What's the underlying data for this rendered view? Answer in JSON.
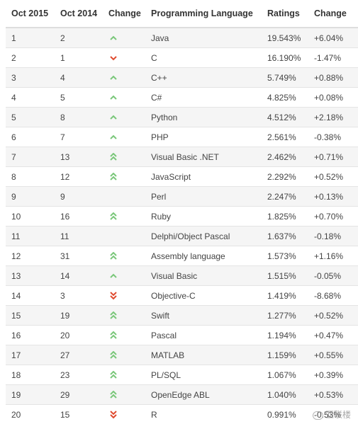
{
  "headers": [
    "Oct 2015",
    "Oct 2014",
    "Change",
    "Programming Language",
    "Ratings",
    "Change"
  ],
  "colors": {
    "up": "#7ac77a",
    "down": "#e04b2f"
  },
  "watermark": "亚联楼",
  "rows": [
    {
      "oct2015": "1",
      "oct2014": "2",
      "change": "up",
      "language": "Java",
      "rating": "19.543%",
      "delta": "+6.04%"
    },
    {
      "oct2015": "2",
      "oct2014": "1",
      "change": "down",
      "language": "C",
      "rating": "16.190%",
      "delta": "-1.47%"
    },
    {
      "oct2015": "3",
      "oct2014": "4",
      "change": "up",
      "language": "C++",
      "rating": "5.749%",
      "delta": "+0.88%"
    },
    {
      "oct2015": "4",
      "oct2014": "5",
      "change": "up",
      "language": "C#",
      "rating": "4.825%",
      "delta": "+0.08%"
    },
    {
      "oct2015": "5",
      "oct2014": "8",
      "change": "up",
      "language": "Python",
      "rating": "4.512%",
      "delta": "+2.18%"
    },
    {
      "oct2015": "6",
      "oct2014": "7",
      "change": "up",
      "language": "PHP",
      "rating": "2.561%",
      "delta": "-0.38%"
    },
    {
      "oct2015": "7",
      "oct2014": "13",
      "change": "double-up",
      "language": "Visual Basic .NET",
      "rating": "2.462%",
      "delta": "+0.71%"
    },
    {
      "oct2015": "8",
      "oct2014": "12",
      "change": "double-up",
      "language": "JavaScript",
      "rating": "2.292%",
      "delta": "+0.52%"
    },
    {
      "oct2015": "9",
      "oct2014": "9",
      "change": "none",
      "language": "Perl",
      "rating": "2.247%",
      "delta": "+0.13%"
    },
    {
      "oct2015": "10",
      "oct2014": "16",
      "change": "double-up",
      "language": "Ruby",
      "rating": "1.825%",
      "delta": "+0.70%"
    },
    {
      "oct2015": "11",
      "oct2014": "11",
      "change": "none",
      "language": "Delphi/Object Pascal",
      "rating": "1.637%",
      "delta": "-0.18%"
    },
    {
      "oct2015": "12",
      "oct2014": "31",
      "change": "double-up",
      "language": "Assembly language",
      "rating": "1.573%",
      "delta": "+1.16%"
    },
    {
      "oct2015": "13",
      "oct2014": "14",
      "change": "up",
      "language": "Visual Basic",
      "rating": "1.515%",
      "delta": "-0.05%"
    },
    {
      "oct2015": "14",
      "oct2014": "3",
      "change": "double-down",
      "language": "Objective-C",
      "rating": "1.419%",
      "delta": "-8.68%"
    },
    {
      "oct2015": "15",
      "oct2014": "19",
      "change": "double-up",
      "language": "Swift",
      "rating": "1.277%",
      "delta": "+0.52%"
    },
    {
      "oct2015": "16",
      "oct2014": "20",
      "change": "double-up",
      "language": "Pascal",
      "rating": "1.194%",
      "delta": "+0.47%"
    },
    {
      "oct2015": "17",
      "oct2014": "27",
      "change": "double-up",
      "language": "MATLAB",
      "rating": "1.159%",
      "delta": "+0.55%"
    },
    {
      "oct2015": "18",
      "oct2014": "23",
      "change": "double-up",
      "language": "PL/SQL",
      "rating": "1.067%",
      "delta": "+0.39%"
    },
    {
      "oct2015": "19",
      "oct2014": "29",
      "change": "double-up",
      "language": "OpenEdge ABL",
      "rating": "1.040%",
      "delta": "+0.53%"
    },
    {
      "oct2015": "20",
      "oct2014": "15",
      "change": "double-down",
      "language": "R",
      "rating": "0.991%",
      "delta": "-0.53%"
    }
  ]
}
